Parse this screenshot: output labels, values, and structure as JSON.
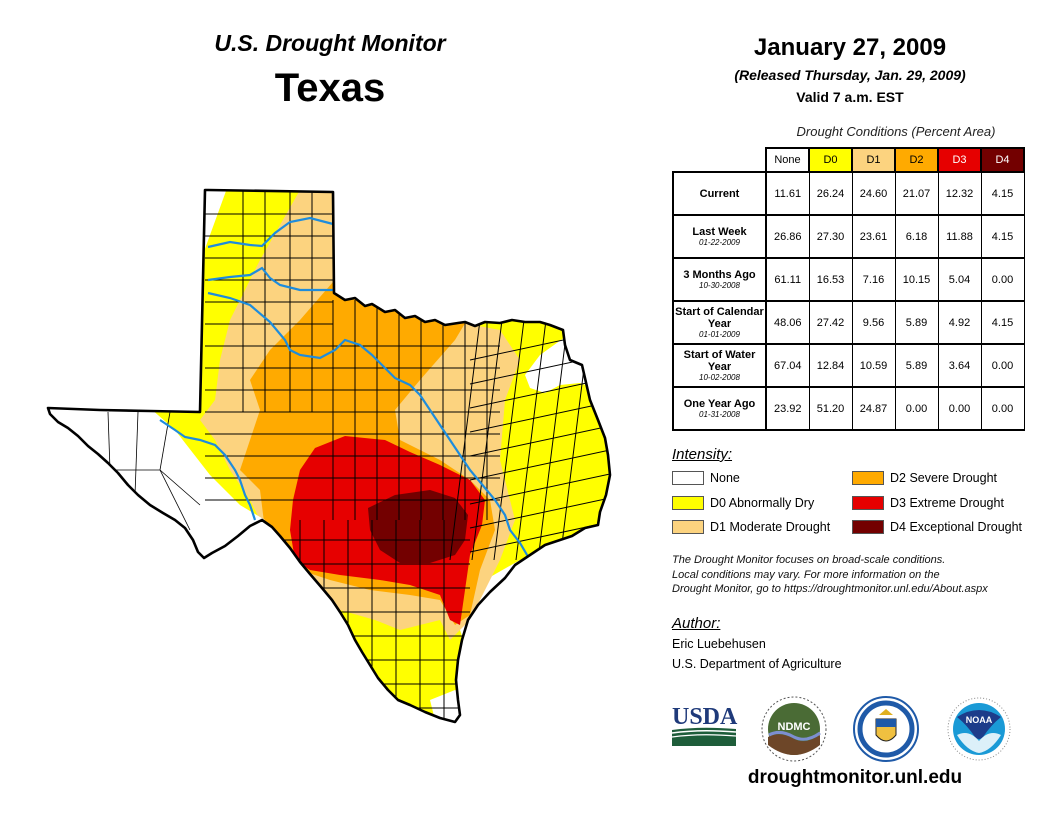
{
  "header": {
    "title": "U.S. Drought Monitor",
    "state": "Texas",
    "date": "January 27, 2009",
    "released": "(Released Thursday, Jan. 29, 2009)",
    "valid": "Valid 7 a.m. EST"
  },
  "table": {
    "caption": "Drought Conditions (Percent Area)",
    "columns": [
      "None",
      "D0",
      "D1",
      "D2",
      "D3",
      "D4"
    ],
    "column_colors": [
      "#ffffff",
      "#ffff00",
      "#fcd37f",
      "#ffaa00",
      "#e60000",
      "#730000"
    ],
    "rows": [
      {
        "label": "Current",
        "sublabel": "",
        "values": [
          "11.61",
          "26.24",
          "24.60",
          "21.07",
          "12.32",
          "4.15"
        ]
      },
      {
        "label": "Last Week",
        "sublabel": "01-22-2009",
        "values": [
          "26.86",
          "27.30",
          "23.61",
          "6.18",
          "11.88",
          "4.15"
        ]
      },
      {
        "label": "3 Months Ago",
        "sublabel": "10-30-2008",
        "values": [
          "61.11",
          "16.53",
          "7.16",
          "10.15",
          "5.04",
          "0.00"
        ]
      },
      {
        "label": "Start of Calendar Year",
        "sublabel": "01-01-2009",
        "values": [
          "48.06",
          "27.42",
          "9.56",
          "5.89",
          "4.92",
          "4.15"
        ]
      },
      {
        "label": "Start of Water Year",
        "sublabel": "10-02-2008",
        "values": [
          "67.04",
          "12.84",
          "10.59",
          "5.89",
          "3.64",
          "0.00"
        ]
      },
      {
        "label": "One Year Ago",
        "sublabel": "01-31-2008",
        "values": [
          "23.92",
          "51.20",
          "24.87",
          "0.00",
          "0.00",
          "0.00"
        ]
      }
    ]
  },
  "legend": {
    "title": "Intensity:",
    "items": [
      {
        "label": "None",
        "color": "#ffffff"
      },
      {
        "label": "D0 Abnormally Dry",
        "color": "#ffff00"
      },
      {
        "label": "D1 Moderate Drought",
        "color": "#fcd37f"
      },
      {
        "label": "D2 Severe Drought",
        "color": "#ffaa00"
      },
      {
        "label": "D3 Extreme Drought",
        "color": "#e60000"
      },
      {
        "label": "D4 Exceptional Drought",
        "color": "#730000"
      }
    ]
  },
  "disclaimer": [
    "The Drought Monitor focuses on broad-scale conditions.",
    "Local conditions may vary. For more information on the",
    "Drought Monitor, go to https://droughtmonitor.unl.edu/About.aspx"
  ],
  "author": {
    "title": "Author:",
    "name": "Eric Luebehusen",
    "organization": "U.S. Department of Agriculture"
  },
  "logos": {
    "usda": "USDA",
    "ndmc": "NDMC",
    "noaa": "NOAA"
  },
  "website": "droughtmonitor.unl.edu",
  "map": {
    "river_color": "#1e8cdc",
    "border_color": "#000000"
  }
}
